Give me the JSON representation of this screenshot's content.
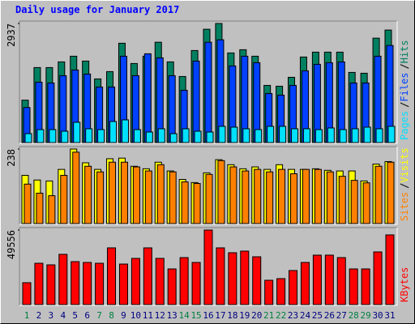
{
  "chart_data": [
    {
      "type": "bar",
      "title": "Daily usage for January 2017",
      "legend_separator": "/",
      "ylim": [
        0,
        2937
      ],
      "yticks": [
        2937
      ],
      "series": [
        {
          "name": "Hits",
          "color": "#008060",
          "values": [
            1046,
            1850,
            1850,
            1990,
            2130,
            2010,
            1570,
            1750,
            2450,
            1950,
            2130,
            2475,
            1990,
            1630,
            2270,
            2795,
            2937,
            2210,
            2290,
            2130,
            1410,
            1390,
            1610,
            2110,
            2230,
            2230,
            2230,
            1730,
            1710,
            2575,
            2775
          ]
        },
        {
          "name": "Files",
          "color": "#0040ff",
          "values": [
            865,
            1490,
            1470,
            1650,
            1790,
            1690,
            1370,
            1370,
            2130,
            1650,
            2190,
            2090,
            1650,
            1290,
            2010,
            2475,
            2535,
            1890,
            2130,
            1970,
            1210,
            1170,
            1410,
            1770,
            1930,
            1970,
            1990,
            1470,
            1470,
            2130,
            2395
          ]
        },
        {
          "name": "Pages",
          "color": "#00e0ff",
          "values": [
            220,
            320,
            320,
            280,
            500,
            340,
            320,
            520,
            560,
            320,
            260,
            340,
            220,
            340,
            280,
            260,
            400,
            380,
            340,
            320,
            400,
            400,
            340,
            340,
            320,
            360,
            320,
            340,
            380,
            340,
            400
          ]
        }
      ]
    },
    {
      "type": "bar",
      "legend_separator": "/",
      "ylim": [
        0,
        238
      ],
      "yticks": [
        238
      ],
      "series": [
        {
          "name": "Visits",
          "color": "#ffff00",
          "values": [
            154,
            139,
            136,
            173,
            238,
            194,
            173,
            207,
            209,
            183,
            175,
            196,
            168,
            141,
            131,
            162,
            204,
            188,
            175,
            181,
            173,
            188,
            173,
            173,
            175,
            170,
            168,
            168,
            136,
            190,
            198
          ]
        },
        {
          "name": "Sites",
          "color": "#ff8000",
          "values": [
            126,
            97,
            89,
            154,
            228,
            183,
            165,
            196,
            196,
            181,
            168,
            188,
            165,
            133,
            128,
            157,
            201,
            181,
            168,
            173,
            165,
            173,
            159,
            173,
            173,
            165,
            151,
            138,
            130,
            183,
            196
          ]
        }
      ]
    },
    {
      "type": "bar",
      "ylim": [
        0,
        49556
      ],
      "yticks": [
        49556
      ],
      "categories": [
        "1",
        "2",
        "3",
        "4",
        "5",
        "6",
        "7",
        "8",
        "9",
        "10",
        "11",
        "12",
        "13",
        "14",
        "15",
        "16",
        "17",
        "18",
        "19",
        "20",
        "21",
        "22",
        "23",
        "24",
        "25",
        "26",
        "27",
        "28",
        "29",
        "30",
        "31"
      ],
      "tick_label_colors": [
        "#008040",
        "#000080",
        "#000080",
        "#000080",
        "#000080",
        "#000080",
        "#008040",
        "#008040",
        "#000080",
        "#000080",
        "#000080",
        "#000080",
        "#000080",
        "#008040",
        "#008040",
        "#000080",
        "#000080",
        "#000080",
        "#000080",
        "#000080",
        "#008040",
        "#008040",
        "#000080",
        "#000080",
        "#000080",
        "#000080",
        "#000080",
        "#008040",
        "#008040",
        "#000080",
        "#000080"
      ],
      "series": [
        {
          "name": "KBytes",
          "color": "#ff0000",
          "values": [
            14550,
            27470,
            26400,
            33400,
            28550,
            28010,
            27470,
            37710,
            26930,
            30710,
            37710,
            30710,
            23700,
            31240,
            28010,
            49556,
            37710,
            34480,
            35550,
            31780,
            16160,
            17240,
            22630,
            28010,
            32860,
            32860,
            31240,
            23700,
            23700,
            35020,
            46330
          ]
        }
      ]
    }
  ]
}
